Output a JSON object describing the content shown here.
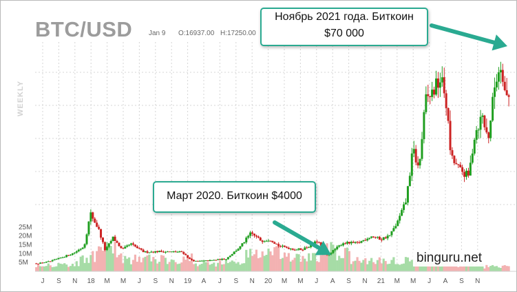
{
  "header": {
    "ticker": "BTC/USD",
    "date": "Jan 9",
    "open": "O:16937.00",
    "high": "H:17250.00",
    "period": "WEEKLY"
  },
  "annotations": {
    "top": {
      "line1": "Ноябрь 2021 года. Биткоин",
      "line2": "$70 000"
    },
    "bottom": {
      "text": "Март 2020. Биткоин $4000"
    }
  },
  "watermark": "binguru.net",
  "colors": {
    "up": "#1f9e1f",
    "down": "#cc2222",
    "volume_up": "#a6dca6",
    "volume_down": "#f3b2b2",
    "arrow": "#2aaa91",
    "grid": "#d4d4d4"
  },
  "chart_data": {
    "type": "candlestick",
    "title": "BTC/USD",
    "period": "weekly",
    "x_tick_labels": [
      "J",
      "S",
      "N",
      "18",
      "M",
      "M",
      "J",
      "S",
      "N",
      "19",
      "A",
      "J",
      "S",
      "N",
      "20",
      "M",
      "M",
      "J",
      "A",
      "S",
      "N",
      "21",
      "M",
      "M",
      "J",
      "A",
      "S",
      "N"
    ],
    "volume_axis_labels": [
      "25M",
      "20M",
      "15M",
      "10M",
      "5M"
    ],
    "price_ylim": [
      0,
      75000
    ],
    "volume_ylim": [
      0,
      30000000
    ],
    "price_path": {
      "x": [
        "2017-06-18",
        "2017-08-01",
        "2017-09-10",
        "2017-10-20",
        "2017-11-25",
        "2017-12-17",
        "2018-01-15",
        "2018-02-06",
        "2018-03-05",
        "2018-04-06",
        "2018-05-05",
        "2018-06-20",
        "2018-08-10",
        "2018-09-15",
        "2018-11-01",
        "2018-11-25",
        "2018-12-15",
        "2019-02-01",
        "2019-04-01",
        "2019-05-20",
        "2019-06-26",
        "2019-08-01",
        "2019-09-01",
        "2019-10-01",
        "2019-11-25",
        "2019-12-20",
        "2020-01-20",
        "2020-02-13",
        "2020-03-13",
        "2020-04-10",
        "2020-05-10",
        "2020-07-01",
        "2020-08-15",
        "2020-09-20",
        "2020-10-20",
        "2020-11-15",
        "2020-12-15",
        "2021-01-08",
        "2021-01-28",
        "2021-02-21",
        "2021-03-13",
        "2021-04-14",
        "2021-05-01",
        "2021-05-20",
        "2021-06-20",
        "2021-07-20",
        "2021-08-10",
        "2021-09-05",
        "2021-09-25",
        "2021-10-20",
        "2021-11-10",
        "2021-11-25"
      ],
      "y": [
        2600,
        3300,
        4600,
        6000,
        8200,
        19000,
        13500,
        6800,
        11000,
        7000,
        9000,
        6300,
        6500,
        6400,
        6300,
        4000,
        3300,
        3500,
        4100,
        8000,
        12500,
        10000,
        10500,
        8300,
        7200,
        7200,
        8500,
        10000,
        5000,
        7000,
        9300,
        9200,
        11500,
        10500,
        11800,
        16000,
        23000,
        40000,
        33000,
        56000,
        58000,
        63000,
        57000,
        37000,
        33000,
        31000,
        45000,
        51000,
        43000,
        62000,
        68500,
        57000
      ]
    },
    "volume_bands": {
      "x_start": [
        "2017-06-01",
        "2017-11-01",
        "2018-01-01",
        "2018-04-01",
        "2018-12-01",
        "2019-03-01",
        "2019-06-01",
        "2019-10-01",
        "2020-02-15",
        "2020-04-01",
        "2020-06-01",
        "2021-01-01",
        "2021-06-01",
        "2021-09-01"
      ],
      "volume": [
        4000000,
        8000000,
        12000000,
        7000000,
        4500000,
        5000000,
        10000000,
        7500000,
        12000000,
        9500000,
        6000000,
        5000000,
        3500000,
        2500000
      ]
    },
    "volume_scale": "relative"
  }
}
